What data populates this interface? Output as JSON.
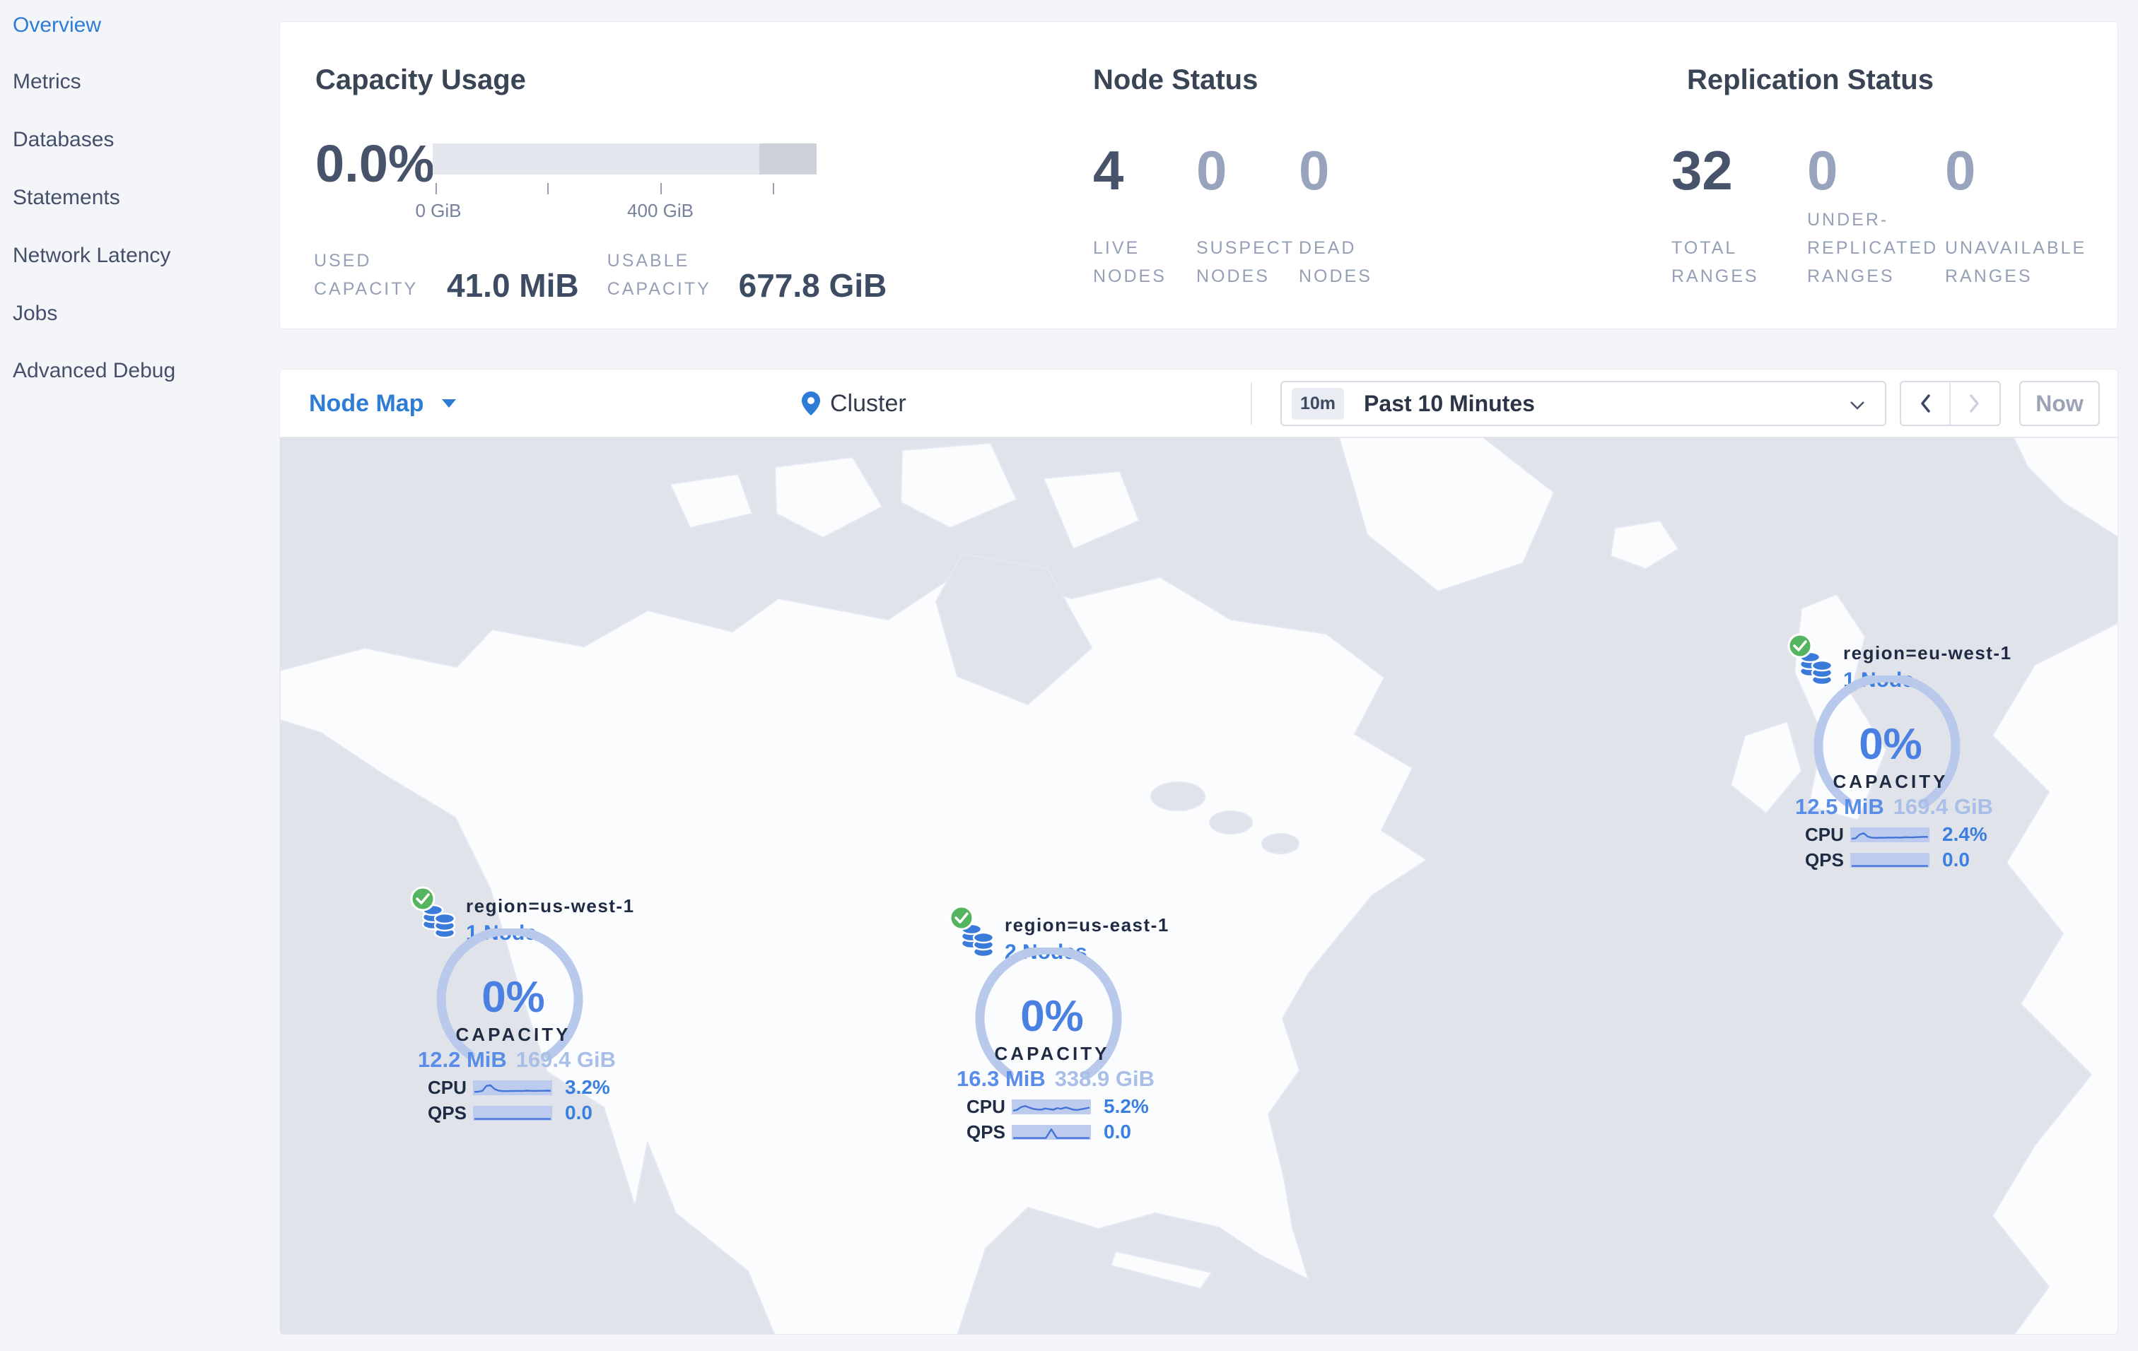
{
  "sidebar": {
    "items": [
      {
        "label": "Overview",
        "active": true
      },
      {
        "label": "Metrics",
        "active": false
      },
      {
        "label": "Databases",
        "active": false
      },
      {
        "label": "Statements",
        "active": false
      },
      {
        "label": "Network Latency",
        "active": false
      },
      {
        "label": "Jobs",
        "active": false
      },
      {
        "label": "Advanced Debug",
        "active": false
      }
    ]
  },
  "capacity": {
    "title": "Capacity Usage",
    "percent": "0.0%",
    "tick_labels": [
      "0 GiB",
      "400 GiB"
    ],
    "used_label": "USED CAPACITY",
    "used_value": "41.0 MiB",
    "usable_label": "USABLE CAPACITY",
    "usable_value": "677.8 GiB"
  },
  "node_status": {
    "title": "Node Status",
    "cols": [
      {
        "value": "4",
        "label": "LIVE NODES",
        "dim": false
      },
      {
        "value": "0",
        "label": "SUSPECT NODES",
        "dim": true
      },
      {
        "value": "0",
        "label": "DEAD NODES",
        "dim": true
      }
    ]
  },
  "replication": {
    "title": "Replication Status",
    "cols": [
      {
        "value": "32",
        "label": "TOTAL RANGES",
        "dim": false
      },
      {
        "value": "0",
        "label": "UNDER-REPLICATED RANGES",
        "dim": true
      },
      {
        "value": "0",
        "label": "UNAVAILABLE RANGES",
        "dim": true
      }
    ]
  },
  "toolbar": {
    "view_label": "Node Map",
    "breadcrumb": "Cluster",
    "time_badge": "10m",
    "time_label": "Past 10 Minutes",
    "now_label": "Now"
  },
  "map_nodes": [
    {
      "region": "region=us-west-1",
      "nodes": "1 Node",
      "percent": "0%",
      "capacity_label": "CAPACITY",
      "used": "12.2 MiB",
      "total": "169.4 GiB",
      "cpu_label": "CPU",
      "cpu": "3.2%",
      "qps_label": "QPS",
      "qps": "0.0",
      "cpu_spark": [
        0.18,
        0.2,
        0.28,
        0.75,
        0.8,
        0.45,
        0.3,
        0.26,
        0.25,
        0.27,
        0.26,
        0.28,
        0.26,
        0.3,
        0.28,
        0.27,
        0.29,
        0.28,
        0.3,
        0.29
      ],
      "qps_spark": [
        0.03,
        0.03,
        0.03,
        0.03,
        0.03,
        0.03,
        0.03,
        0.03,
        0.03,
        0.03,
        0.03,
        0.03,
        0.03,
        0.03,
        0.03
      ]
    },
    {
      "region": "region=us-east-1",
      "nodes": "2 Nodes",
      "percent": "0%",
      "capacity_label": "CAPACITY",
      "used": "16.3 MiB",
      "total": "338.9 GiB",
      "cpu_label": "CPU",
      "cpu": "5.2%",
      "qps_label": "QPS",
      "qps": "0.0",
      "cpu_spark": [
        0.2,
        0.3,
        0.55,
        0.65,
        0.5,
        0.38,
        0.32,
        0.3,
        0.42,
        0.35,
        0.3,
        0.45,
        0.38,
        0.52,
        0.42,
        0.3,
        0.28,
        0.35,
        0.42,
        0.5
      ],
      "qps_spark": [
        0.03,
        0.03,
        0.03,
        0.03,
        0.03,
        0.03,
        0.03,
        0.85,
        0.03,
        0.03,
        0.03,
        0.03,
        0.03,
        0.03,
        0.03
      ]
    },
    {
      "region": "region=eu-west-1",
      "nodes": "1 Node",
      "percent": "0%",
      "capacity_label": "CAPACITY",
      "used": "12.5 MiB",
      "total": "169.4 GiB",
      "cpu_label": "CPU",
      "cpu": "2.4%",
      "qps_label": "QPS",
      "qps": "0.0",
      "cpu_spark": [
        0.2,
        0.24,
        0.6,
        0.72,
        0.4,
        0.3,
        0.28,
        0.3,
        0.29,
        0.31,
        0.3,
        0.32,
        0.3,
        0.33,
        0.34,
        0.32,
        0.35,
        0.36,
        0.38,
        0.37
      ],
      "qps_spark": [
        0.03,
        0.03,
        0.03,
        0.03,
        0.03,
        0.03,
        0.03,
        0.03,
        0.03,
        0.03,
        0.03,
        0.03,
        0.03,
        0.03,
        0.03
      ]
    }
  ],
  "colors": {
    "accent_blue": "#2e7cd6",
    "gauge_arc": "#b9c9ec",
    "live_green": "#54b45f",
    "ocean": "#e0e3ea",
    "land": "#fbfcfe"
  }
}
